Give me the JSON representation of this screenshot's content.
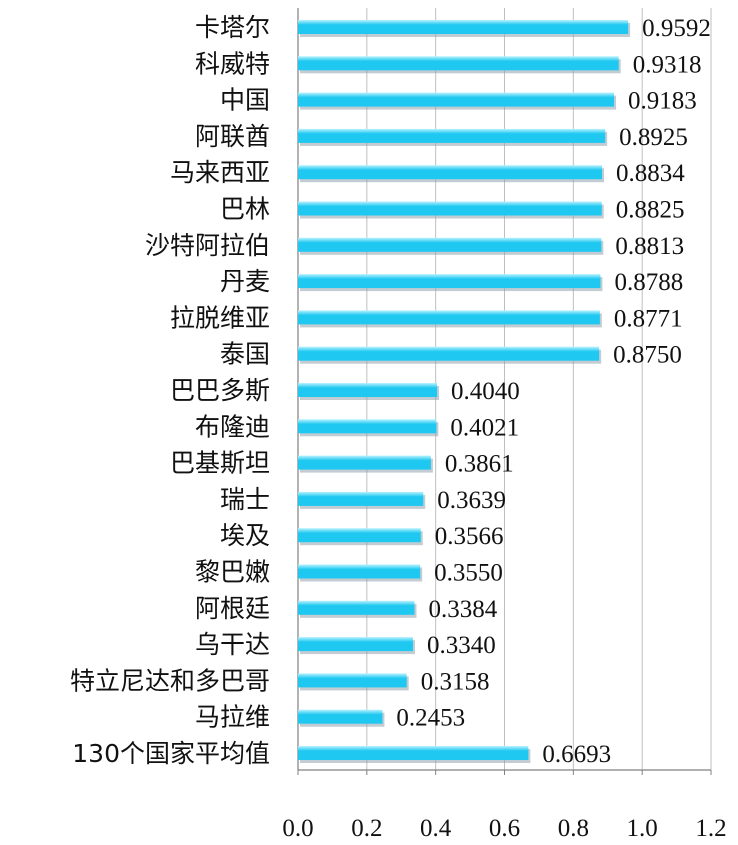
{
  "chart_data": {
    "type": "bar",
    "orientation": "horizontal",
    "categories": [
      "卡塔尔",
      "科威特",
      "中国",
      "阿联酋",
      "马来西亚",
      "巴林",
      "沙特阿拉伯",
      "丹麦",
      "拉脱维亚",
      "泰国",
      "巴巴多斯",
      "布隆迪",
      "巴基斯坦",
      "瑞士",
      "埃及",
      "黎巴嫩",
      "阿根廷",
      "乌干达",
      "特立尼达和多巴哥",
      "马拉维",
      "130个国家平均值"
    ],
    "values": [
      0.9592,
      0.9318,
      0.9183,
      0.8925,
      0.8834,
      0.8825,
      0.8813,
      0.8788,
      0.8771,
      0.875,
      0.404,
      0.4021,
      0.3861,
      0.3639,
      0.3566,
      0.355,
      0.3384,
      0.334,
      0.3158,
      0.2453,
      0.6693
    ],
    "value_labels": [
      "0.9592",
      "0.9318",
      "0.9183",
      "0.8925",
      "0.8834",
      "0.8825",
      "0.8813",
      "0.8788",
      "0.8771",
      "0.8750",
      "0.4040",
      "0.4021",
      "0.3861",
      "0.3639",
      "0.3566",
      "0.3550",
      "0.3384",
      "0.3340",
      "0.3158",
      "0.2453",
      "0.6693"
    ],
    "xlim": [
      0,
      1.2
    ],
    "x_ticks": [
      "0.0",
      "0.2",
      "0.4",
      "0.6",
      "0.8",
      "1.0",
      "1.2"
    ],
    "grid": true,
    "bar_color": "#1EC8F0",
    "bar_highlight": "#B8F2FF",
    "bar_shadow": "#8FA3AD",
    "grid_color": "#BFBFBF",
    "axis_color": "#808080"
  }
}
